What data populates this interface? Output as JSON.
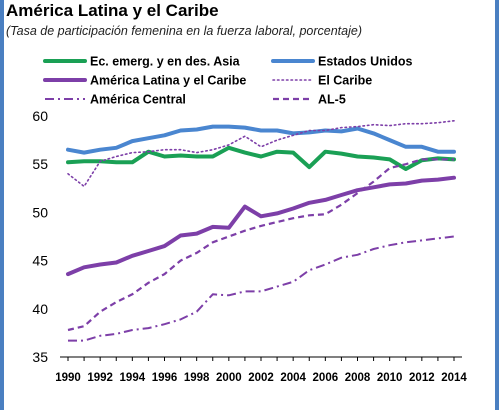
{
  "header": {
    "title": "América Latina y el Caribe",
    "subtitle": "(Tasa de participación femenina en la fuerza laboral, porcentaje)"
  },
  "chart_data": {
    "type": "line",
    "title": "América Latina y el Caribe",
    "subtitle": "(Tasa de participación femenina en la fuerza laboral, porcentaje)",
    "x": [
      1990,
      1991,
      1992,
      1993,
      1994,
      1995,
      1996,
      1997,
      1998,
      1999,
      2000,
      2001,
      2002,
      2003,
      2004,
      2005,
      2006,
      2007,
      2008,
      2009,
      2010,
      2011,
      2012,
      2013,
      2014
    ],
    "x_tick_labels": [
      "1990",
      "1992",
      "1994",
      "1996",
      "1998",
      "2000",
      "2002",
      "2004",
      "2006",
      "2008",
      "2010",
      "2012",
      "2014"
    ],
    "ylim": [
      35,
      60
    ],
    "y_ticks": [
      35,
      40,
      45,
      50,
      55,
      60
    ],
    "grid": false,
    "legend_placement": "top",
    "series": [
      {
        "name": "Ec. emerg. y en des. Asia",
        "color": "#1aa055",
        "style": "solid-thick",
        "values": [
          55.2,
          55.3,
          55.3,
          55.2,
          55.2,
          56.3,
          55.8,
          55.9,
          55.8,
          55.8,
          56.7,
          56.2,
          55.8,
          56.3,
          56.2,
          54.7,
          56.3,
          56.1,
          55.8,
          55.7,
          55.5,
          54.5,
          55.4,
          55.6,
          55.5
        ]
      },
      {
        "name": "Estados Unidos",
        "color": "#4a86d0",
        "style": "solid-thick",
        "values": [
          56.5,
          56.2,
          56.5,
          56.7,
          57.4,
          57.7,
          58.0,
          58.5,
          58.6,
          58.9,
          58.9,
          58.8,
          58.5,
          58.5,
          58.2,
          58.3,
          58.5,
          58.4,
          58.7,
          58.2,
          57.5,
          56.8,
          56.8,
          56.3,
          56.3
        ]
      },
      {
        "name": "América Latina y el Caribe",
        "color": "#7d3fa8",
        "style": "solid-thick",
        "values": [
          43.6,
          44.3,
          44.6,
          44.8,
          45.5,
          46.0,
          46.5,
          47.6,
          47.8,
          48.5,
          48.4,
          50.6,
          49.6,
          49.9,
          50.4,
          51.0,
          51.3,
          51.8,
          52.3,
          52.6,
          52.9,
          53.0,
          53.3,
          53.4,
          53.6
        ]
      },
      {
        "name": "El Caribe",
        "color": "#7d3fa8",
        "style": "dotted",
        "values": [
          54.0,
          52.7,
          55.3,
          55.8,
          56.2,
          56.3,
          56.5,
          56.5,
          56.2,
          56.5,
          57.0,
          57.9,
          56.8,
          57.5,
          58.0,
          58.5,
          58.5,
          58.8,
          58.9,
          59.1,
          59.0,
          59.2,
          59.2,
          59.3,
          59.5
        ]
      },
      {
        "name": "América Central",
        "color": "#7d3fa8",
        "style": "dash-dot",
        "values": [
          36.7,
          36.7,
          37.2,
          37.4,
          37.8,
          38.0,
          38.4,
          38.9,
          39.7,
          41.5,
          41.4,
          41.8,
          41.8,
          42.3,
          42.8,
          44.0,
          44.6,
          45.3,
          45.6,
          46.2,
          46.6,
          46.9,
          47.1,
          47.3,
          47.5
        ]
      },
      {
        "name": "AL-5",
        "color": "#7d3fa8",
        "style": "dashed",
        "values": [
          37.8,
          38.2,
          39.7,
          40.7,
          41.5,
          42.7,
          43.6,
          45.0,
          45.8,
          46.9,
          47.5,
          48.1,
          48.6,
          49.0,
          49.4,
          49.7,
          49.8,
          50.8,
          52.0,
          53.2,
          54.6,
          55.0,
          55.5,
          55.5,
          55.5
        ]
      }
    ]
  }
}
